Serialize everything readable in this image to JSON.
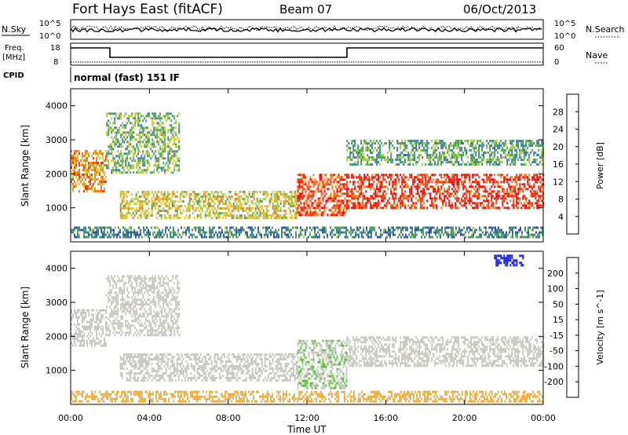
{
  "header": {
    "station": "Fort Hays East (fitACF)",
    "beam": "Beam 07",
    "date": "06/Oct/2013"
  },
  "panels": {
    "nsky": {
      "label": "N.Sky",
      "tick_top": "10^5",
      "tick_bottom": "10^0",
      "right_label": "N.Search",
      "right_tick_top": "10^5",
      "right_tick_bottom": "10^0"
    },
    "freq": {
      "label_line1": "Freq.",
      "label_line2": "[MHz]",
      "tick_top": "18",
      "tick_bottom": "8",
      "right_label": "Nave",
      "right_tick_top": "60",
      "right_tick_bottom": "0"
    },
    "cpid": {
      "label": "CPID",
      "value": "normal (fast) 151 IF"
    }
  },
  "chart_data": [
    {
      "type": "heatmap",
      "name": "power",
      "ylabel": "Slant Range [km]",
      "xlabel": "",
      "x_ticks": [
        "00:00",
        "04:00",
        "08:00",
        "12:00",
        "16:00",
        "20:00",
        "00:00"
      ],
      "y_ticks": [
        1000,
        2000,
        3000,
        4000
      ],
      "ylim": [
        0,
        4500
      ],
      "xlim_hours": [
        0,
        24
      ],
      "colorbar": {
        "label": "Power [dB]",
        "ticks": [
          4,
          8,
          12,
          16,
          20,
          24,
          28
        ],
        "range": [
          0,
          32
        ],
        "colors": [
          "#1a1aff",
          "#2e4fb5",
          "#3f7f8f",
          "#4f9f6a",
          "#9fcf3f",
          "#f0c020",
          "#f08020",
          "#f04010",
          "#ff0000"
        ]
      },
      "regions": [
        {
          "t_start": 0.0,
          "t_end": 1.8,
          "range_start": 1500,
          "range_end": 2700,
          "level": 22
        },
        {
          "t_start": 1.8,
          "t_end": 5.5,
          "range_start": 2000,
          "range_end": 3800,
          "level": 14
        },
        {
          "t_start": 2.5,
          "t_end": 11.5,
          "range_start": 700,
          "range_end": 1500,
          "level": 18
        },
        {
          "t_start": 11.5,
          "t_end": 14.0,
          "range_start": 800,
          "range_end": 2000,
          "level": 26
        },
        {
          "t_start": 14.0,
          "t_end": 24.0,
          "range_start": 1000,
          "range_end": 2000,
          "level": 28
        },
        {
          "t_start": 14.0,
          "t_end": 24.0,
          "range_start": 2300,
          "range_end": 3000,
          "level": 12
        },
        {
          "t_start": 0.0,
          "t_end": 24.0,
          "range_start": 150,
          "range_end": 450,
          "level": 10
        }
      ]
    },
    {
      "type": "heatmap",
      "name": "velocity",
      "ylabel": "Slant Range [km]",
      "xlabel": "Time UT",
      "x_ticks": [
        "00:00",
        "04:00",
        "08:00",
        "12:00",
        "16:00",
        "20:00",
        "00:00"
      ],
      "y_ticks": [
        1000,
        2000,
        3000,
        4000
      ],
      "ylim": [
        0,
        4500
      ],
      "xlim_hours": [
        0,
        24
      ],
      "colorbar": {
        "label": "Velocity [m s^-1]",
        "ticks": [
          "200",
          "100",
          "50",
          "15",
          "-15",
          "-50",
          "-100",
          "-200"
        ],
        "range": [
          -250,
          250
        ],
        "colors": [
          "#ff0000",
          "#f05010",
          "#f09020",
          "#f0b040",
          "#c8c8c0",
          "#c8c8c0",
          "#60c040",
          "#3f8f5f",
          "#2e4fb5",
          "#1a1aff"
        ]
      },
      "regions": [
        {
          "t_start": 0.0,
          "t_end": 1.8,
          "range_start": 1700,
          "range_end": 2800,
          "level": 0
        },
        {
          "t_start": 1.8,
          "t_end": 5.5,
          "range_start": 2000,
          "range_end": 3800,
          "level": 5
        },
        {
          "t_start": 2.5,
          "t_end": 11.5,
          "range_start": 700,
          "range_end": 1500,
          "level": 30
        },
        {
          "t_start": 11.5,
          "t_end": 14.0,
          "range_start": 500,
          "range_end": 1900,
          "level": 45
        },
        {
          "t_start": 14.0,
          "t_end": 24.0,
          "range_start": 1100,
          "range_end": 2000,
          "level": 0
        },
        {
          "t_start": 0.0,
          "t_end": 24.0,
          "range_start": 100,
          "range_end": 400,
          "level": -60
        },
        {
          "t_start": 21.5,
          "t_end": 23.0,
          "range_start": 4100,
          "range_end": 4400,
          "level": 210
        }
      ]
    }
  ]
}
